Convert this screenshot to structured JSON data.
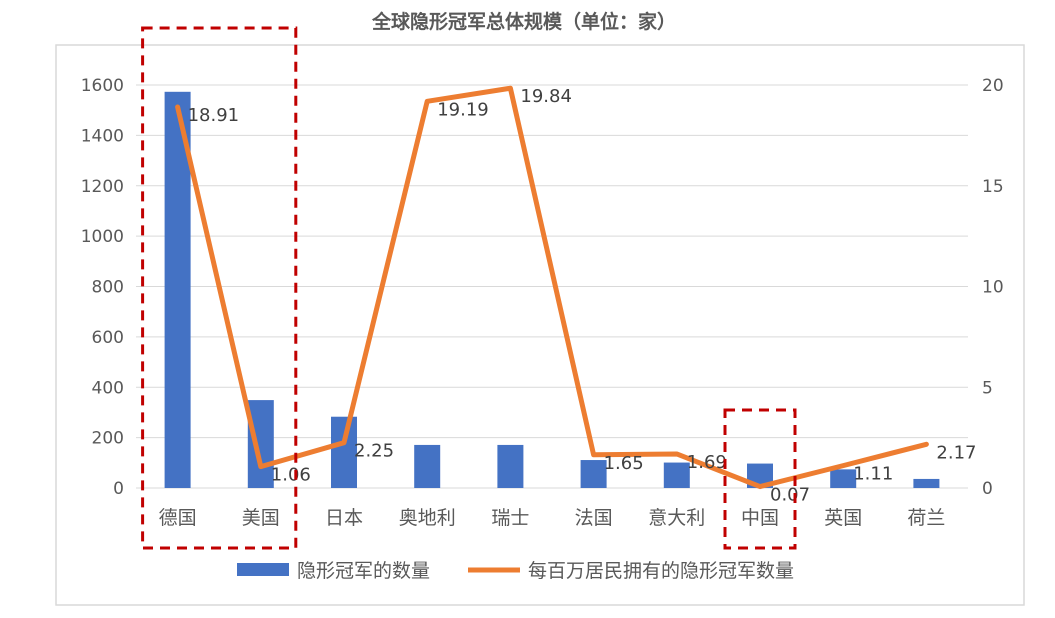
{
  "chart_data": {
    "type": "bar+line",
    "title": "全球隐形冠军总体规模（单位：家）",
    "categories": [
      "德国",
      "美国",
      "日本",
      "奥地利",
      "瑞士",
      "法国",
      "意大利",
      "中国",
      "英国",
      "荷兰"
    ],
    "series": [
      {
        "name": "隐形冠军的数量",
        "type": "bar",
        "axis": "left",
        "color": "#4472C4",
        "values": [
          1573,
          349,
          283,
          171,
          171,
          111,
          101,
          97,
          74,
          36
        ]
      },
      {
        "name": "每百万居民拥有的隐形冠军数量",
        "type": "line",
        "axis": "right",
        "color": "#ED7D31",
        "values": [
          18.91,
          1.06,
          2.25,
          19.19,
          19.84,
          1.65,
          1.69,
          0.07,
          1.11,
          2.17
        ],
        "labels": [
          "18.91",
          "1.06",
          "2.25",
          "19.19",
          "19.84",
          "1.65",
          "1.69",
          "0.07",
          "1.11",
          "2.17"
        ]
      }
    ],
    "y_left": {
      "min": 0,
      "max": 1600,
      "ticks": [
        "0",
        "200",
        "400",
        "600",
        "800",
        "1000",
        "1200",
        "1400",
        "1600"
      ]
    },
    "y_right": {
      "min": 0,
      "max": 20,
      "ticks": [
        "0",
        "5",
        "10",
        "15",
        "20"
      ]
    },
    "grid": true,
    "legend_position": "bottom",
    "highlight_boxes": [
      {
        "categories": [
          "德国",
          "美国"
        ],
        "style": "dashed",
        "color": "#C00000"
      },
      {
        "categories": [
          "中国"
        ],
        "style": "dashed",
        "color": "#C00000"
      }
    ]
  }
}
